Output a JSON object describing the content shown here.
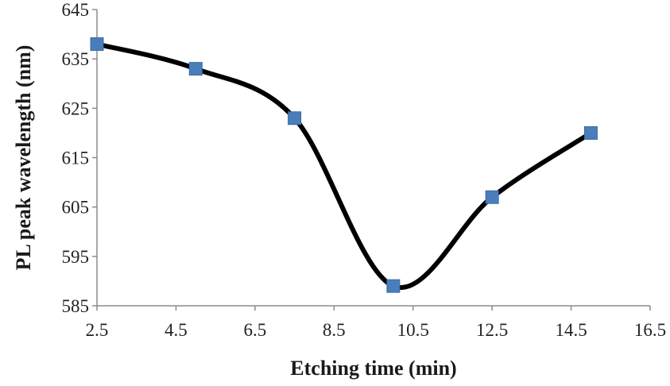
{
  "chart_data": {
    "type": "line",
    "title": "",
    "xlabel": "Etching time (min)",
    "ylabel": "PL peak wavelength (nm)",
    "x": [
      2.5,
      5,
      7.5,
      10,
      12.5,
      15
    ],
    "series": [
      {
        "values": [
          638,
          633,
          623,
          589,
          607,
          620
        ],
        "color": "#4a7ebb",
        "line_color": "#000000",
        "marker": "square",
        "smooth": true
      }
    ],
    "xlim": [
      2.5,
      16.5
    ],
    "ylim": [
      585,
      645
    ],
    "xticks": [
      2.5,
      4.5,
      6.5,
      8.5,
      10.5,
      12.5,
      14.5,
      16.5
    ],
    "yticks": [
      585,
      595,
      605,
      615,
      625,
      635,
      645
    ],
    "xtick_labels": [
      "2.5",
      "4.5",
      "6.5",
      "8.5",
      "10.5",
      "12.5",
      "14.5",
      "16.5"
    ],
    "ytick_labels": [
      "585",
      "595",
      "605",
      "615",
      "625",
      "635",
      "645"
    ],
    "grid": false,
    "legend": "none"
  }
}
